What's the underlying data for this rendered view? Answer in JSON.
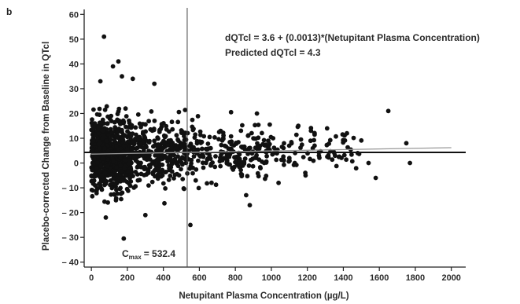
{
  "panel_label": "b",
  "chart_data": {
    "type": "scatter",
    "xlabel": "Netupitant Plasma Concentration (µg/L)",
    "ylabel": "Placebo-corrected Change from Baseline in QTcl",
    "xlim": [
      -40,
      2080
    ],
    "ylim": [
      -42,
      62
    ],
    "x_ticks": [
      0,
      200,
      400,
      600,
      800,
      1000,
      1200,
      1400,
      1600,
      1800,
      2000
    ],
    "y_ticks": [
      -40,
      -30,
      -20,
      -10,
      0,
      10,
      20,
      30,
      40,
      50,
      60
    ],
    "x_tick_labels": [
      "0",
      "200",
      "400",
      "600",
      "800",
      "1000",
      "1200",
      "1400",
      "1600",
      "1800",
      "2000"
    ],
    "y_tick_labels": [
      "– 40",
      "– 30",
      "– 20",
      "– 10",
      "0",
      "10",
      "20",
      "30",
      "40",
      "50",
      "60"
    ],
    "annotations": {
      "equation": "dQTcl = 3.6 + (0.0013)*(Netupitant Plasma Concentration)",
      "predicted": "Predicted dQTcl = 4.3",
      "cmax_main": "C",
      "cmax_sub": "max",
      "cmax_value": "= 532.4"
    },
    "cmax": 532.4,
    "reference_line_y": 4.3,
    "regression": {
      "intercept": 3.6,
      "slope": 0.0013,
      "x_range": [
        0,
        2000
      ]
    },
    "point_generation": {
      "n": 1300,
      "seed": 7
    },
    "highlight_points": [
      [
        70,
        51
      ],
      [
        150,
        41
      ],
      [
        120,
        39
      ],
      [
        170,
        35
      ],
      [
        50,
        33
      ],
      [
        350,
        32
      ],
      [
        230,
        34
      ],
      [
        180,
        -30.5
      ],
      [
        550,
        -25
      ],
      [
        300,
        -21
      ],
      [
        80,
        -22
      ],
      [
        1650,
        21
      ],
      [
        1750,
        8
      ],
      [
        1770,
        0
      ],
      [
        1420,
        12
      ],
      [
        1310,
        14
      ],
      [
        1220,
        13
      ],
      [
        1540,
        0
      ],
      [
        1580,
        -6
      ],
      [
        1190,
        -5
      ],
      [
        1040,
        -8
      ],
      [
        920,
        20
      ],
      [
        880,
        -17
      ],
      [
        1010,
        10
      ],
      [
        1150,
        15
      ],
      [
        1240,
        12
      ],
      [
        1100,
        2
      ],
      [
        1350,
        4
      ],
      [
        1480,
        4
      ],
      [
        960,
        0
      ],
      [
        860,
        -13
      ]
    ]
  }
}
